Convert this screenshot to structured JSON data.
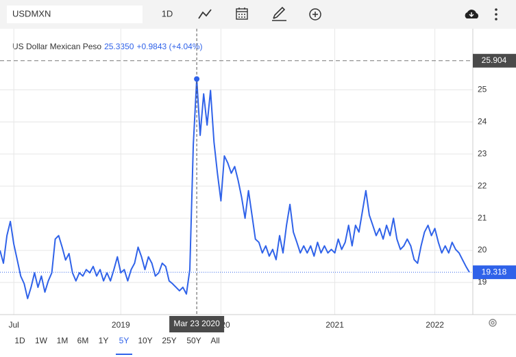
{
  "toolbar": {
    "symbol": "USDMXN",
    "interval": "1D"
  },
  "chart_data": {
    "type": "line",
    "title": "US Dollar Mexican Peso",
    "price": "25.3350",
    "change": "+0.9843 (+4.04%)",
    "color": "#2f62e9",
    "categories": [
      null,
      null,
      null,
      null,
      "Jul",
      null,
      null,
      null,
      null,
      null,
      null,
      null,
      null,
      null,
      null,
      null,
      null,
      null,
      null,
      null,
      null,
      null,
      null,
      null,
      null,
      null,
      null,
      null,
      null,
      null,
      null,
      null,
      null,
      null,
      null,
      "2019",
      null,
      null,
      null,
      null,
      null,
      null,
      null,
      null,
      null,
      null,
      null,
      null,
      null,
      null,
      null,
      null,
      null,
      null,
      null,
      null,
      null,
      null,
      null,
      null,
      null,
      null,
      null,
      null,
      "2020",
      null,
      null,
      null,
      null,
      null,
      null,
      null,
      null,
      null,
      null,
      null,
      null,
      null,
      null,
      null,
      null,
      null,
      null,
      null,
      null,
      null,
      null,
      null,
      null,
      null,
      null,
      null,
      null,
      null,
      null,
      null,
      null,
      "2021",
      null,
      null,
      null,
      null,
      null,
      null,
      null,
      null,
      null,
      null,
      null,
      null,
      null,
      null,
      null,
      null,
      null,
      null,
      null,
      null,
      null,
      null,
      null,
      null,
      null,
      null,
      null,
      null,
      "2022",
      null,
      null,
      null,
      null,
      null,
      null,
      null,
      null,
      null,
      null
    ],
    "values": [
      20.0,
      19.6,
      20.46,
      20.9,
      20.2,
      19.7,
      19.2,
      18.96,
      18.5,
      18.85,
      19.3,
      18.85,
      19.2,
      18.7,
      19.05,
      19.3,
      20.35,
      20.46,
      20.1,
      19.7,
      19.9,
      19.3,
      19.05,
      19.3,
      19.2,
      19.4,
      19.3,
      19.5,
      19.2,
      19.4,
      19.05,
      19.3,
      19.05,
      19.4,
      19.8,
      19.3,
      19.4,
      19.05,
      19.4,
      19.6,
      20.1,
      19.8,
      19.4,
      19.8,
      19.6,
      19.2,
      19.3,
      19.6,
      19.5,
      19.05,
      18.96,
      18.85,
      18.74,
      18.85,
      18.64,
      19.4,
      23.3,
      25.335,
      23.58,
      24.87,
      23.9,
      24.98,
      23.37,
      22.4,
      21.54,
      22.94,
      22.72,
      22.4,
      22.61,
      22.18,
      21.65,
      21.0,
      21.86,
      21.1,
      20.35,
      20.25,
      19.92,
      20.14,
      19.82,
      20.03,
      19.71,
      20.46,
      19.92,
      20.78,
      21.43,
      20.57,
      20.25,
      19.92,
      20.14,
      19.92,
      20.14,
      19.82,
      20.25,
      19.92,
      20.14,
      19.92,
      20.03,
      19.92,
      20.35,
      20.03,
      20.25,
      20.78,
      20.14,
      20.78,
      20.57,
      21.22,
      21.86,
      21.1,
      20.78,
      20.46,
      20.68,
      20.35,
      20.78,
      20.46,
      21.0,
      20.35,
      20.03,
      20.14,
      20.35,
      20.14,
      19.71,
      19.6,
      20.14,
      20.57,
      20.78,
      20.46,
      20.68,
      20.25,
      19.92,
      20.14,
      19.92,
      20.25,
      20.03,
      19.92,
      19.71,
      19.5,
      19.318
    ],
    "ylim": [
      18,
      26.9
    ],
    "yticks": [
      19,
      20,
      21,
      22,
      23,
      24,
      25
    ],
    "grid": true,
    "crosshair": {
      "x_label": "Mar 23 2020",
      "y_value": 25.904
    },
    "ranges": [
      "1D",
      "1W",
      "1M",
      "6M",
      "1Y",
      "5Y",
      "10Y",
      "25Y",
      "50Y",
      "All"
    ]
  }
}
